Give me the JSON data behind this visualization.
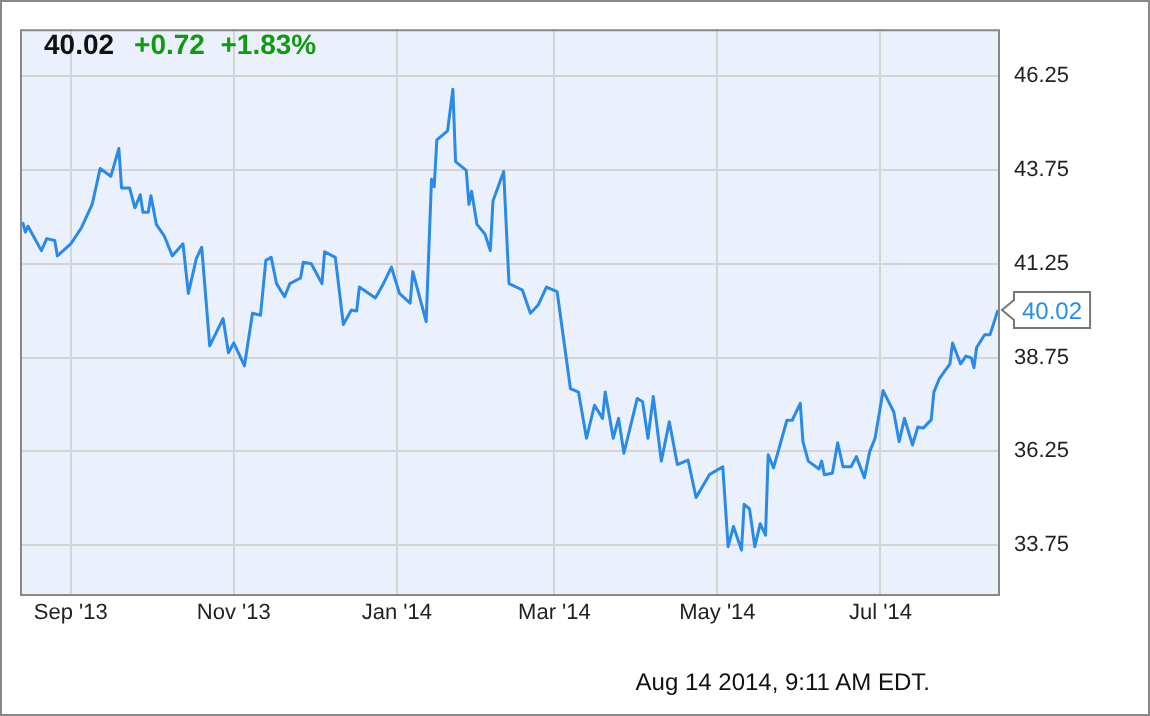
{
  "chart_data": {
    "type": "line",
    "title": "40.02",
    "subtitle": "+0.72  +1.83%",
    "x": [
      "2013-08-14",
      "2013-08-15",
      "2013-08-16",
      "2013-08-21",
      "2013-08-23",
      "2013-08-26",
      "2013-08-27",
      "2013-09-01",
      "2013-09-05",
      "2013-09-09",
      "2013-09-12",
      "2013-09-16",
      "2013-09-19",
      "2013-09-20",
      "2013-09-23",
      "2013-09-25",
      "2013-09-27",
      "2013-09-28",
      "2013-09-30",
      "2013-10-01",
      "2013-10-03",
      "2013-10-06",
      "2013-10-09",
      "2013-10-13",
      "2013-10-15",
      "2013-10-18",
      "2013-10-20",
      "2013-10-23",
      "2013-10-28",
      "2013-10-30",
      "2013-11-01",
      "2013-11-05",
      "2013-11-08",
      "2013-11-11",
      "2013-11-13",
      "2013-11-15",
      "2013-11-17",
      "2013-11-20",
      "2013-11-22",
      "2013-11-26",
      "2013-11-27",
      "2013-11-30",
      "2013-12-04",
      "2013-12-05",
      "2013-12-09",
      "2013-12-12",
      "2013-12-15",
      "2013-12-17",
      "2013-12-18",
      "2013-12-24",
      "2013-12-27",
      "2013-12-30",
      "2014-01-02",
      "2014-01-06",
      "2014-01-07",
      "2014-01-12",
      "2014-01-14",
      "2014-01-15",
      "2014-01-16",
      "2014-01-20",
      "2014-01-22",
      "2014-01-23",
      "2014-01-27",
      "2014-01-28",
      "2014-01-29",
      "2014-01-31",
      "2014-02-03",
      "2014-02-05",
      "2014-02-06",
      "2014-02-10",
      "2014-02-12",
      "2014-02-17",
      "2014-02-20",
      "2014-02-23",
      "2014-02-26",
      "2014-03-02",
      "2014-03-07",
      "2014-03-10",
      "2014-03-13",
      "2014-03-16",
      "2014-03-19",
      "2014-03-20",
      "2014-03-23",
      "2014-03-25",
      "2014-03-27",
      "2014-04-01",
      "2014-04-03",
      "2014-04-05",
      "2014-04-07",
      "2014-04-10",
      "2014-04-13",
      "2014-04-16",
      "2014-04-20",
      "2014-04-23",
      "2014-04-28",
      "2014-05-03",
      "2014-05-05",
      "2014-05-07",
      "2014-05-10",
      "2014-05-11",
      "2014-05-13",
      "2014-05-15",
      "2014-05-17",
      "2014-05-19",
      "2014-05-20",
      "2014-05-22",
      "2014-05-27",
      "2014-05-29",
      "2014-06-01",
      "2014-06-02",
      "2014-06-04",
      "2014-06-08",
      "2014-06-09",
      "2014-06-10",
      "2014-06-13",
      "2014-06-15",
      "2014-06-17",
      "2014-06-20",
      "2014-06-22",
      "2014-06-25",
      "2014-06-27",
      "2014-06-29",
      "2014-07-02",
      "2014-07-06",
      "2014-07-08",
      "2014-07-10",
      "2014-07-13",
      "2014-07-15",
      "2014-07-17",
      "2014-07-20",
      "2014-07-21",
      "2014-07-23",
      "2014-07-27",
      "2014-07-28",
      "2014-07-31",
      "2014-08-02",
      "2014-08-04",
      "2014-08-05",
      "2014-08-06",
      "2014-08-09",
      "2014-08-11",
      "2014-08-14"
    ],
    "series": [
      {
        "color": "#2a8ae6",
        "values": [
          42.36,
          42.09,
          42.25,
          41.6,
          41.92,
          41.87,
          41.46,
          41.78,
          42.21,
          42.83,
          43.79,
          43.58,
          44.32,
          43.27,
          43.27,
          42.74,
          43.09,
          42.62,
          42.62,
          43.06,
          42.3,
          41.99,
          41.46,
          41.78,
          40.46,
          41.39,
          41.69,
          39.06,
          39.79,
          38.88,
          39.14,
          38.53,
          39.93,
          39.88,
          41.34,
          41.42,
          40.72,
          40.37,
          40.72,
          40.87,
          41.29,
          41.25,
          40.72,
          41.57,
          41.42,
          39.63,
          40.02,
          39.99,
          40.63,
          40.34,
          40.72,
          41.16,
          40.46,
          40.2,
          41.04,
          39.71,
          43.5,
          43.3,
          44.55,
          44.79,
          45.9,
          43.97,
          43.74,
          42.83,
          43.18,
          42.3,
          42.04,
          41.6,
          42.92,
          43.71,
          40.72,
          40.55,
          39.93,
          40.16,
          40.63,
          40.51,
          37.92,
          37.83,
          36.6,
          37.48,
          37.13,
          37.83,
          36.6,
          37.13,
          36.2,
          37.66,
          37.57,
          36.6,
          37.71,
          35.99,
          37.04,
          35.9,
          36.02,
          35.02,
          35.63,
          35.84,
          33.71,
          34.25,
          33.62,
          34.84,
          34.72,
          33.71,
          34.32,
          34.02,
          36.16,
          35.81,
          37.08,
          37.08,
          37.53,
          36.51,
          35.99,
          35.78,
          35.99,
          35.63,
          35.67,
          36.48,
          35.84,
          35.84,
          36.11,
          35.55,
          36.25,
          36.6,
          37.87,
          37.3,
          36.51,
          37.13,
          36.42,
          36.9,
          36.87,
          37.09,
          37.83,
          38.18,
          38.58,
          39.14,
          38.58,
          38.79,
          38.74,
          38.48,
          39.02,
          39.36,
          39.36,
          40.02
        ]
      }
    ],
    "xlim": [
      "2013-08-13",
      "2014-08-14"
    ],
    "xticks": [
      {
        "value": "2013-09-01",
        "label": "Sep '13"
      },
      {
        "value": "2013-11-01",
        "label": "Nov '13"
      },
      {
        "value": "2014-01-01",
        "label": "Jan '14"
      },
      {
        "value": "2014-03-01",
        "label": "Mar '14"
      },
      {
        "value": "2014-05-01",
        "label": "May '14"
      },
      {
        "value": "2014-07-01",
        "label": "Jul '14"
      }
    ],
    "ylim": [
      32.45,
      47.5
    ],
    "yticks": [
      33.75,
      36.25,
      38.75,
      41.25,
      43.75,
      46.25
    ],
    "grid": true,
    "annotations": [
      {
        "text": "40.02",
        "x": "2014-08-14",
        "y": 40.02
      },
      "Aug 14 2014, 9:11 AM EDT."
    ]
  }
}
